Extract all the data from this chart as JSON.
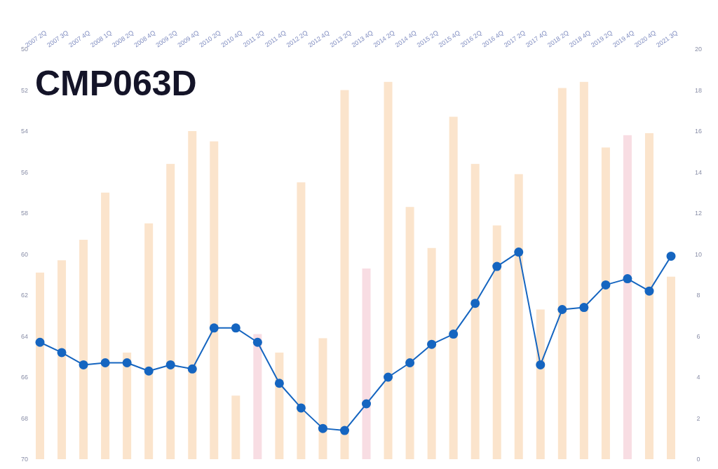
{
  "chart_data": {
    "type": "bar",
    "title": "CMP063D",
    "categories": [
      "2007 2Q",
      "2007 3Q",
      "2007 4Q",
      "2008 1Q",
      "2008 2Q",
      "2008 4Q",
      "2009 2Q",
      "2009 4Q",
      "2010 2Q",
      "2010 4Q",
      "2011 2Q",
      "2011 4Q",
      "2012 2Q",
      "2012 4Q",
      "2013 2Q",
      "2013 4Q",
      "2014 2Q",
      "2014 4Q",
      "2015 2Q",
      "2015 4Q",
      "2016 2Q",
      "2016 4Q",
      "2017 2Q",
      "2017 4Q",
      "2018 2Q",
      "2018 4Q",
      "2019 2Q",
      "2019 4Q",
      "2020 4Q",
      "2021 3Q"
    ],
    "series": [
      {
        "axis": "y2",
        "colors": [
          "#fbe4cc",
          "#fbe4cc",
          "#fbe4cc",
          "#fbe4cc",
          "#fbe4cc",
          "#fbe4cc",
          "#fbe4cc",
          "#fbe4cc",
          "#fbe4cc",
          "#fbe4cc",
          "#f8dde3",
          "#fbe4cc",
          "#fbe4cc",
          "#fbe4cc",
          "#fbe4cc",
          "#f8dde3",
          "#fbe4cc",
          "#fbe4cc",
          "#fbe4cc",
          "#fbe4cc",
          "#fbe4cc",
          "#fbe4cc",
          "#fbe4cc",
          "#fbe4cc",
          "#fbe4cc",
          "#fbe4cc",
          "#fbe4cc",
          "#f8dde3",
          "#fbe4cc",
          "#fbe4cc"
        ],
        "values": [
          9.1,
          9.7,
          10.7,
          13.0,
          5.2,
          11.5,
          14.4,
          16.0,
          15.5,
          3.1,
          6.1,
          5.2,
          13.5,
          5.9,
          18.0,
          9.3,
          18.4,
          12.3,
          10.3,
          16.7,
          14.4,
          11.4,
          13.9,
          7.3,
          18.1,
          18.4,
          15.2,
          15.8,
          15.9,
          8.9
        ]
      },
      {
        "type": "line",
        "axis": "y",
        "color": "#1565c0",
        "values": [
          64.3,
          64.8,
          65.4,
          65.3,
          65.3,
          65.7,
          65.4,
          65.6,
          63.6,
          63.6,
          64.3,
          66.3,
          67.5,
          68.5,
          68.6,
          67.3,
          66.0,
          65.3,
          64.4,
          63.9,
          62.4,
          60.6,
          59.9,
          65.4,
          62.7,
          62.6,
          61.5,
          61.2,
          61.8,
          60.1
        ]
      }
    ],
    "ylim": [
      70,
      50
    ],
    "yticks": [
      50,
      52,
      54,
      56,
      58,
      60,
      62,
      64,
      66,
      68,
      70
    ],
    "y2lim": [
      0,
      20
    ],
    "y2ticks": [
      0,
      2,
      4,
      6,
      8,
      10,
      12,
      14,
      16,
      18,
      20
    ],
    "marker": "circle",
    "line_style": "solid",
    "grid": false
  }
}
